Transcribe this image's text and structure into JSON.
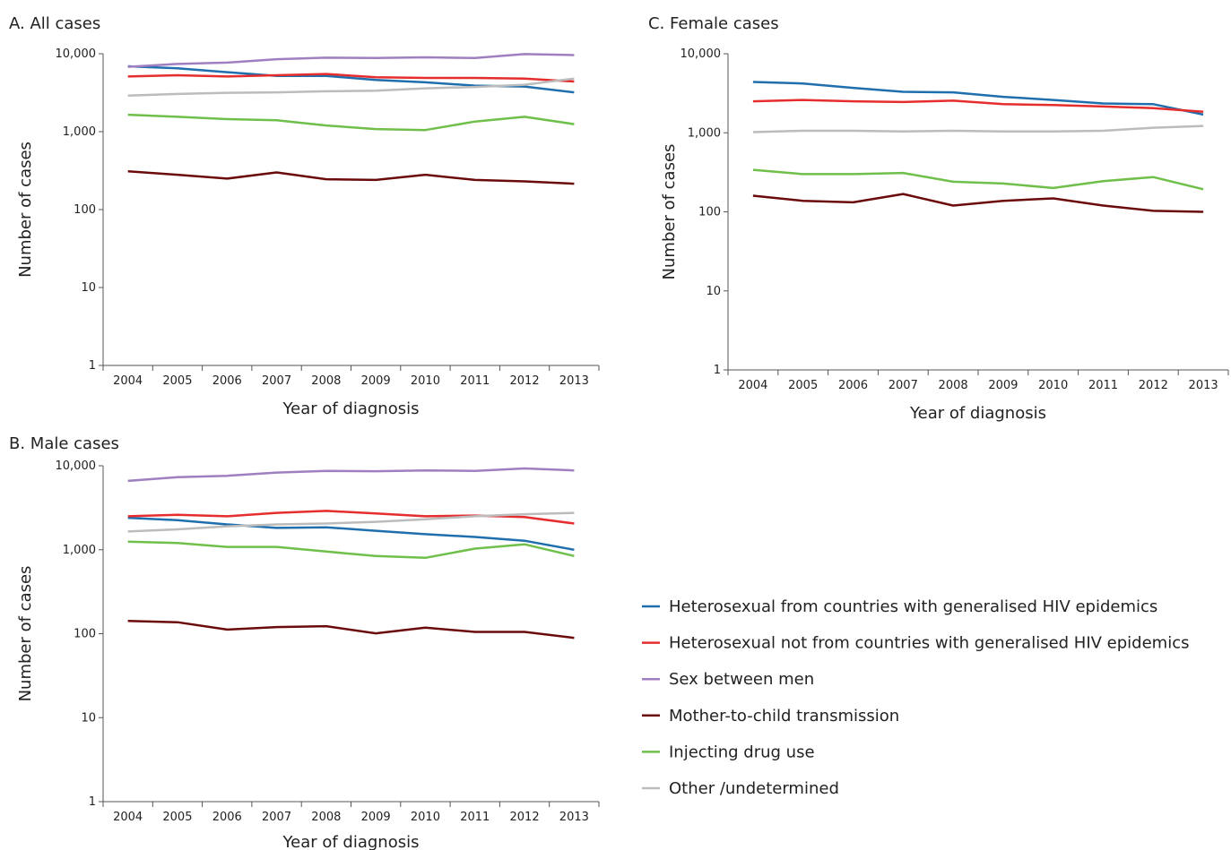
{
  "chart_data": [
    {
      "type": "line",
      "title": "A. All cases",
      "xlabel": "Year of diagnosis",
      "ylabel": "Number of cases",
      "yscale": "log",
      "ylim": [
        1,
        10000
      ],
      "yticks": [
        1,
        10,
        100,
        1000,
        10000
      ],
      "ytick_labels": [
        "1",
        "10",
        "100",
        "1,000",
        "10,000"
      ],
      "x": [
        "2004",
        "2005",
        "2006",
        "2007",
        "2008",
        "2009",
        "2010",
        "2011",
        "2012",
        "2013"
      ],
      "series": [
        {
          "name": "Heterosexual from countries with generalised HIV epidemics",
          "values": [
            6900,
            6500,
            5800,
            5200,
            5200,
            4600,
            4300,
            3900,
            3800,
            3200
          ]
        },
        {
          "name": "Heterosexual not from countries with generalised HIV epidemics",
          "values": [
            5100,
            5300,
            5100,
            5300,
            5500,
            5000,
            4900,
            4900,
            4800,
            4400
          ]
        },
        {
          "name": "Sex between men",
          "values": [
            6800,
            7400,
            7700,
            8500,
            8900,
            8800,
            9000,
            8800,
            9900,
            9600
          ]
        },
        {
          "name": "Mother-to-child transmission",
          "values": [
            310,
            280,
            250,
            300,
            245,
            240,
            280,
            240,
            230,
            215
          ]
        },
        {
          "name": "Injecting drug use",
          "values": [
            1650,
            1550,
            1450,
            1400,
            1200,
            1080,
            1050,
            1350,
            1550,
            1250
          ]
        },
        {
          "name": "Other /undetermined",
          "values": [
            2900,
            3050,
            3150,
            3200,
            3300,
            3350,
            3600,
            3750,
            4000,
            4800
          ]
        }
      ]
    },
    {
      "type": "line",
      "title": "B. Male cases",
      "xlabel": "Year of diagnosis",
      "ylabel": "Number of cases",
      "yscale": "log",
      "ylim": [
        1,
        10000
      ],
      "yticks": [
        1,
        10,
        100,
        1000,
        10000
      ],
      "ytick_labels": [
        "1",
        "10",
        "100",
        "1,000",
        "10,000"
      ],
      "x": [
        "2004",
        "2005",
        "2006",
        "2007",
        "2008",
        "2009",
        "2010",
        "2011",
        "2012",
        "2013"
      ],
      "series": [
        {
          "name": "Heterosexual from countries with generalised HIV epidemics",
          "values": [
            2400,
            2250,
            2000,
            1820,
            1850,
            1680,
            1530,
            1420,
            1280,
            1000
          ]
        },
        {
          "name": "Heterosexual not from countries with generalised HIV epidemics",
          "values": [
            2500,
            2600,
            2500,
            2750,
            2900,
            2700,
            2500,
            2550,
            2450,
            2050
          ]
        },
        {
          "name": "Sex between men",
          "values": [
            6600,
            7300,
            7600,
            8300,
            8700,
            8600,
            8800,
            8700,
            9300,
            8800
          ]
        },
        {
          "name": "Mother-to-child transmission",
          "values": [
            142,
            137,
            112,
            120,
            123,
            101,
            118,
            105,
            105,
            89
          ]
        },
        {
          "name": "Injecting drug use",
          "values": [
            1250,
            1200,
            1080,
            1080,
            950,
            840,
            800,
            1030,
            1160,
            840
          ]
        },
        {
          "name": "Other /undetermined",
          "values": [
            1650,
            1750,
            1900,
            2000,
            2050,
            2150,
            2300,
            2500,
            2650,
            2750
          ]
        }
      ]
    },
    {
      "type": "line",
      "title": "C. Female cases",
      "xlabel": "Year of diagnosis",
      "ylabel": "Number of cases",
      "yscale": "log",
      "ylim": [
        1,
        10000
      ],
      "yticks": [
        1,
        10,
        100,
        1000,
        10000
      ],
      "ytick_labels": [
        "1",
        "10",
        "100",
        "1,000",
        "10,000"
      ],
      "x": [
        "2004",
        "2005",
        "2006",
        "2007",
        "2008",
        "2009",
        "2010",
        "2011",
        "2012",
        "2013"
      ],
      "series": [
        {
          "name": "Heterosexual from countries with generalised HIV epidemics",
          "values": [
            4400,
            4200,
            3700,
            3300,
            3250,
            2850,
            2600,
            2350,
            2300,
            1700
          ]
        },
        {
          "name": "Heterosexual not from countries with generalised HIV epidemics",
          "values": [
            2500,
            2600,
            2500,
            2450,
            2550,
            2300,
            2250,
            2150,
            2050,
            1850
          ]
        },
        {
          "name": "Mother-to-child transmission",
          "values": [
            160,
            138,
            132,
            168,
            120,
            138,
            148,
            120,
            103,
            100
          ]
        },
        {
          "name": "Injecting drug use",
          "values": [
            340,
            300,
            300,
            310,
            240,
            228,
            200,
            245,
            275,
            193
          ]
        },
        {
          "name": "Other /undetermined",
          "values": [
            1020,
            1060,
            1060,
            1040,
            1060,
            1040,
            1040,
            1060,
            1160,
            1220
          ]
        }
      ]
    }
  ],
  "legend": [
    {
      "label": "Heterosexual from countries with generalised HIV epidemics",
      "color": "#1f6fae"
    },
    {
      "label": "Heterosexual not from countries with generalised HIV epidemics",
      "color": "#e52d2d"
    },
    {
      "label": "Sex between men",
      "color": "#a07fc0"
    },
    {
      "label": "Mother-to-child transmission",
      "color": "#6b0a0a"
    },
    {
      "label": "Injecting drug use",
      "color": "#6fbf4a"
    },
    {
      "label": "Other /undetermined",
      "color": "#bcbcbc"
    }
  ]
}
